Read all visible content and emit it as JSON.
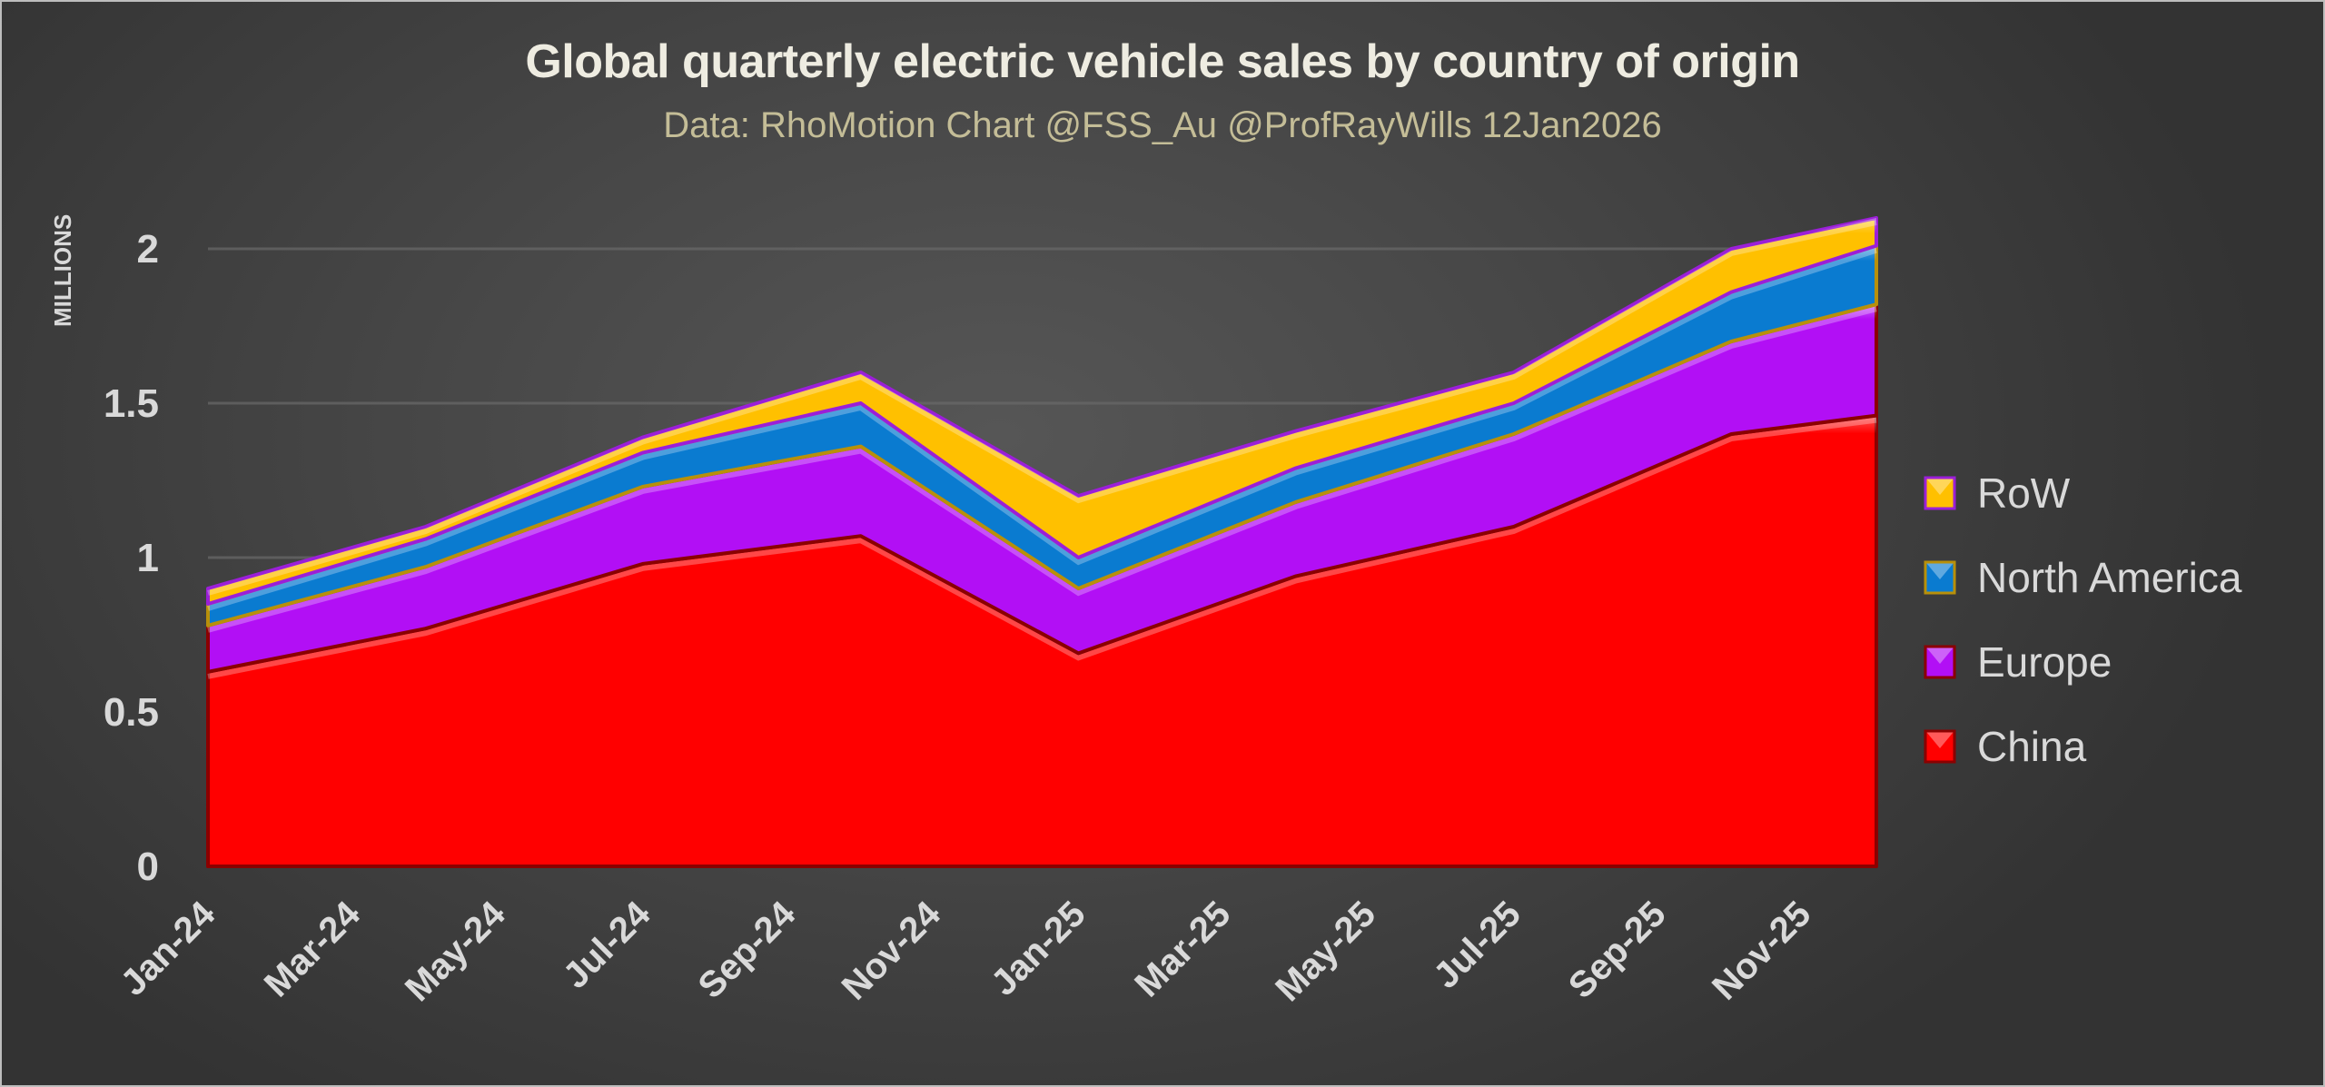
{
  "chart_data": {
    "type": "area",
    "stacked": true,
    "title": "Global quarterly electric vehicle sales by country of origin",
    "subtitle": "Data: RhoMotion  Chart @FSS_Au @ProfRayWills 12Jan2026",
    "ylabel": "MILLIONS",
    "xlabel": "",
    "ylim": [
      0,
      2.2
    ],
    "yticks": [
      {
        "value": 0,
        "label": "0"
      },
      {
        "value": 0.5,
        "label": "0.5"
      },
      {
        "value": 1,
        "label": "1"
      },
      {
        "value": 1.5,
        "label": "1.5"
      },
      {
        "value": 2,
        "label": "2"
      }
    ],
    "grid": true,
    "xaxis": {
      "type": "date",
      "start": "Jan-24",
      "end": "Dec-25",
      "tick_labels": [
        {
          "month": 0,
          "label": "Jan-24"
        },
        {
          "month": 2,
          "label": "Mar-24"
        },
        {
          "month": 4,
          "label": "May-24"
        },
        {
          "month": 6,
          "label": "Jul-24"
        },
        {
          "month": 8,
          "label": "Sep-24"
        },
        {
          "month": 10,
          "label": "Nov-24"
        },
        {
          "month": 12,
          "label": "Jan-25"
        },
        {
          "month": 14,
          "label": "Mar-25"
        },
        {
          "month": 16,
          "label": "May-25"
        },
        {
          "month": 18,
          "label": "Jul-25"
        },
        {
          "month": 20,
          "label": "Sep-25"
        },
        {
          "month": 22,
          "label": "Nov-25"
        }
      ]
    },
    "x": [
      "Jan-24",
      "Apr-24",
      "Jul-24",
      "Oct-24",
      "Jan-25",
      "Apr-25",
      "Jul-25",
      "Oct-25",
      "Dec-25"
    ],
    "x_month_index": [
      0,
      3,
      6,
      9,
      12,
      15,
      18,
      21,
      23
    ],
    "series": [
      {
        "name": "China",
        "color": "#ff0000",
        "edge": "#8b0000",
        "values": [
          0.63,
          0.77,
          0.98,
          1.07,
          0.69,
          0.94,
          1.1,
          1.4,
          1.46
        ]
      },
      {
        "name": "Europe",
        "color": "#b20ff5",
        "edge": "#8b0000",
        "values": [
          0.15,
          0.2,
          0.25,
          0.29,
          0.21,
          0.24,
          0.3,
          0.3,
          0.36
        ]
      },
      {
        "name": "North America",
        "color": "#0a7bd0",
        "edge": "#b8900a",
        "values": [
          0.07,
          0.09,
          0.11,
          0.14,
          0.1,
          0.11,
          0.1,
          0.16,
          0.19
        ]
      },
      {
        "name": "RoW",
        "color": "#ffc000",
        "edge": "#9b1fd8",
        "values": [
          0.05,
          0.04,
          0.05,
          0.1,
          0.2,
          0.12,
          0.1,
          0.14,
          0.09
        ]
      }
    ],
    "legend": {
      "position": "right",
      "order": [
        "RoW",
        "North America",
        "Europe",
        "China"
      ]
    }
  }
}
